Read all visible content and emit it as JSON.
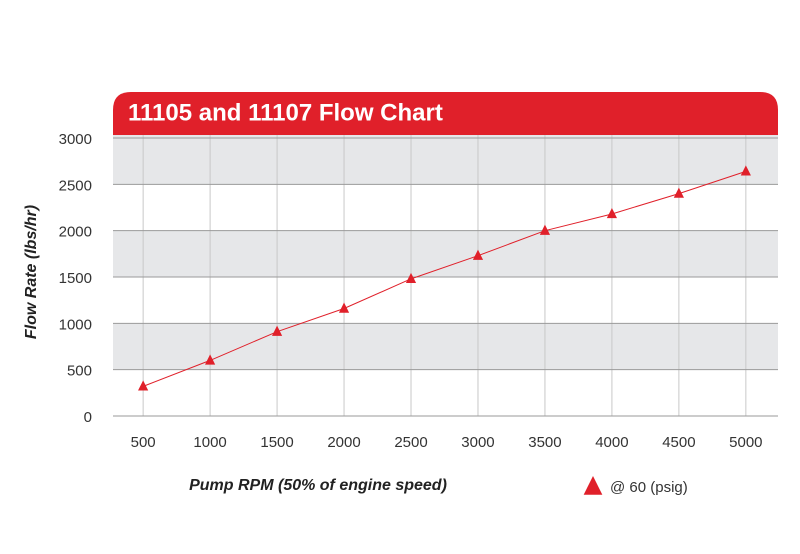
{
  "chart_data": {
    "type": "line",
    "title": "11105 and 11107 Flow Chart",
    "x_label": "Pump RPM (50% of engine speed)",
    "y_label": "Flow Rate (lbs/hr)",
    "x": [
      500,
      1000,
      1500,
      2000,
      2500,
      3000,
      3500,
      4000,
      4500,
      5000
    ],
    "series": [
      {
        "name": "@ 60 (psig)",
        "color": "#e0202a",
        "values": [
          320,
          600,
          910,
          1160,
          1480,
          1730,
          2000,
          2180,
          2400,
          2640
        ]
      }
    ],
    "xlim": [
      275,
      5240
    ],
    "xticks": [
      500,
      1000,
      1500,
      2000,
      2500,
      3000,
      3500,
      4000,
      4500,
      5000
    ],
    "ylim": [
      0,
      3000
    ],
    "yticks": [
      0,
      500,
      1000,
      1500,
      2000,
      2500,
      3000
    ],
    "grid": true,
    "legend": "bottom-right"
  }
}
